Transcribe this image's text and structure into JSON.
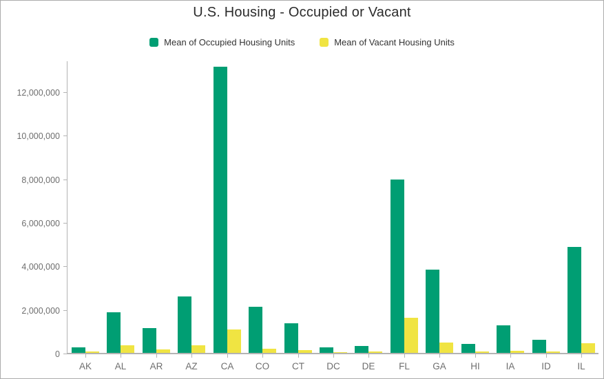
{
  "title": "U.S. Housing - Occupied or Vacant",
  "colors": {
    "occupied": "#009E73",
    "vacant": "#F0E442",
    "axis_line": "#b3b3b3",
    "tick_label_text": "#6e6e6e",
    "title_text": "#2b2b2b",
    "legend_text": "#323232",
    "frame_border": "#ababab",
    "background": "#ffffff"
  },
  "legend": {
    "items": [
      {
        "label": "Mean of Occupied Housing Units",
        "series": "occupied",
        "color": "#009E73"
      },
      {
        "label": "Mean of Vacant Housing Units",
        "series": "vacant",
        "color": "#F0E442"
      }
    ]
  },
  "chart_data": {
    "type": "bar",
    "title": "U.S. Housing - Occupied or Vacant",
    "xlabel": "",
    "ylabel": "",
    "categories": [
      "AK",
      "AL",
      "AR",
      "AZ",
      "CA",
      "CO",
      "CT",
      "DC",
      "DE",
      "FL",
      "GA",
      "HI",
      "IA",
      "ID",
      "IL"
    ],
    "series": [
      {
        "name": "Mean of Occupied Housing Units",
        "color": "#009E73",
        "values": [
          250000,
          1860000,
          1140000,
          2590000,
          13150000,
          2110000,
          1360000,
          250000,
          320000,
          7950000,
          3820000,
          410000,
          1250000,
          600000,
          4860000
        ]
      },
      {
        "name": "Mean of Vacant Housing Units",
        "color": "#F0E442",
        "values": [
          60000,
          350000,
          160000,
          350000,
          1070000,
          190000,
          130000,
          30000,
          60000,
          1610000,
          470000,
          50000,
          110000,
          70000,
          440000
        ]
      }
    ],
    "ylim": [
      0,
      13450000
    ],
    "y_ticks": [
      {
        "value": 0,
        "label": "0"
      },
      {
        "value": 2000000,
        "label": "2,000,000"
      },
      {
        "value": 4000000,
        "label": "4,000,000"
      },
      {
        "value": 6000000,
        "label": "6,000,000"
      },
      {
        "value": 8000000,
        "label": "8,000,000"
      },
      {
        "value": 10000000,
        "label": "10,000,000"
      },
      {
        "value": 12000000,
        "label": "12,000,000"
      }
    ],
    "grid": false,
    "legend_position": "top"
  }
}
